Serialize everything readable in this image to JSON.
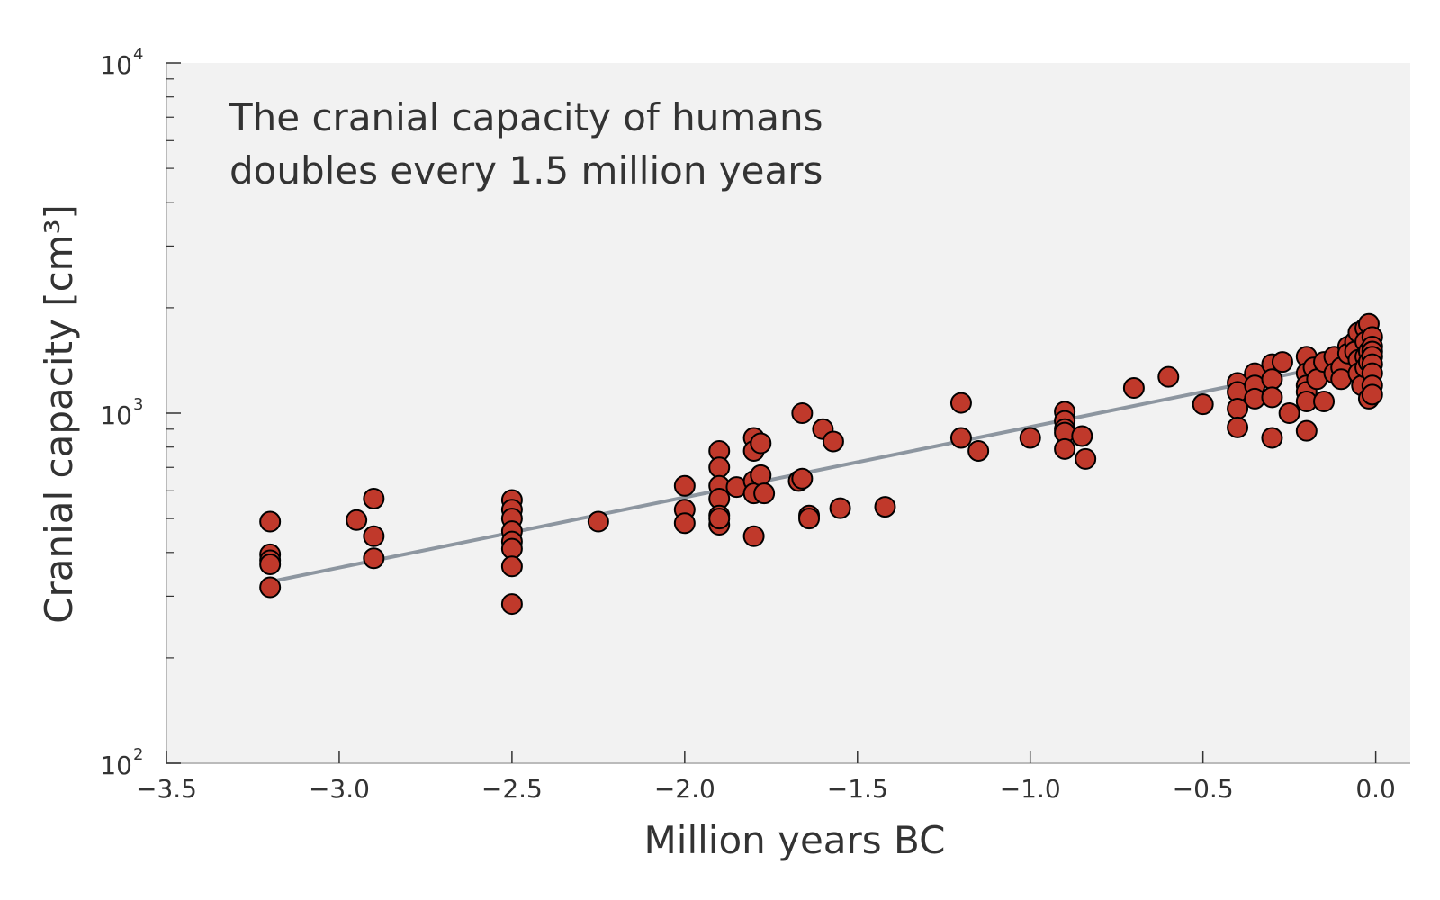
{
  "chart_data": {
    "type": "scatter",
    "annotation_lines": [
      "The cranial capacity of humans",
      "doubles every 1.5 million years"
    ],
    "xlabel": "Million years BC",
    "ylabel": "Cranial capacity [cm³]",
    "xlim": [
      -3.5,
      0.1
    ],
    "ylim": [
      100,
      10000
    ],
    "yscale": "log",
    "grid": false,
    "x_ticks": [
      -3.5,
      -3.0,
      -2.5,
      -2.0,
      -1.5,
      -1.0,
      -0.5,
      0.0
    ],
    "x_tick_labels": [
      "−3.5",
      "−3.0",
      "−2.5",
      "−2.0",
      "−1.5",
      "−1.0",
      "−0.5",
      "0.0"
    ],
    "y_major_ticks": [
      {
        "value": 100,
        "base": "10",
        "exp": "2"
      },
      {
        "value": 1000,
        "base": "10",
        "exp": "3"
      },
      {
        "value": 10000,
        "base": "10",
        "exp": "4"
      }
    ],
    "colors": {
      "plot_background": "#f2f2f2",
      "marker_fill": "#c0392b",
      "marker_edge": "#000000",
      "fit_line": "#8d96a0",
      "axis": "#bbbbbb",
      "text": "#333333"
    },
    "fit": {
      "x": [
        -3.2,
        0.0
      ],
      "y": [
        330,
        1450
      ]
    },
    "points": [
      {
        "x": -3.2,
        "y": 490
      },
      {
        "x": -3.2,
        "y": 395
      },
      {
        "x": -3.2,
        "y": 380
      },
      {
        "x": -3.2,
        "y": 370
      },
      {
        "x": -3.2,
        "y": 318
      },
      {
        "x": -2.95,
        "y": 495
      },
      {
        "x": -2.9,
        "y": 570
      },
      {
        "x": -2.9,
        "y": 445
      },
      {
        "x": -2.9,
        "y": 385
      },
      {
        "x": -2.5,
        "y": 565
      },
      {
        "x": -2.5,
        "y": 530
      },
      {
        "x": -2.5,
        "y": 500
      },
      {
        "x": -2.5,
        "y": 460
      },
      {
        "x": -2.5,
        "y": 430
      },
      {
        "x": -2.5,
        "y": 410
      },
      {
        "x": -2.5,
        "y": 365
      },
      {
        "x": -2.5,
        "y": 285
      },
      {
        "x": -2.25,
        "y": 490
      },
      {
        "x": -2.0,
        "y": 620
      },
      {
        "x": -2.0,
        "y": 530
      },
      {
        "x": -2.0,
        "y": 485
      },
      {
        "x": -1.9,
        "y": 780
      },
      {
        "x": -1.9,
        "y": 700
      },
      {
        "x": -1.9,
        "y": 620
      },
      {
        "x": -1.9,
        "y": 570
      },
      {
        "x": -1.9,
        "y": 510
      },
      {
        "x": -1.9,
        "y": 480
      },
      {
        "x": -1.9,
        "y": 500
      },
      {
        "x": -1.85,
        "y": 615
      },
      {
        "x": -1.8,
        "y": 850
      },
      {
        "x": -1.8,
        "y": 780
      },
      {
        "x": -1.8,
        "y": 640
      },
      {
        "x": -1.8,
        "y": 590
      },
      {
        "x": -1.8,
        "y": 445
      },
      {
        "x": -1.78,
        "y": 820
      },
      {
        "x": -1.78,
        "y": 665
      },
      {
        "x": -1.77,
        "y": 590
      },
      {
        "x": -1.66,
        "y": 1000
      },
      {
        "x": -1.67,
        "y": 640
      },
      {
        "x": -1.66,
        "y": 650
      },
      {
        "x": -1.64,
        "y": 510
      },
      {
        "x": -1.64,
        "y": 500
      },
      {
        "x": -1.6,
        "y": 900
      },
      {
        "x": -1.57,
        "y": 830
      },
      {
        "x": -1.55,
        "y": 535
      },
      {
        "x": -1.42,
        "y": 540
      },
      {
        "x": -1.2,
        "y": 1070
      },
      {
        "x": -1.2,
        "y": 850
      },
      {
        "x": -1.15,
        "y": 780
      },
      {
        "x": -1.0,
        "y": 850
      },
      {
        "x": -0.9,
        "y": 1010
      },
      {
        "x": -0.9,
        "y": 950
      },
      {
        "x": -0.9,
        "y": 900
      },
      {
        "x": -0.9,
        "y": 880
      },
      {
        "x": -0.9,
        "y": 790
      },
      {
        "x": -0.85,
        "y": 860
      },
      {
        "x": -0.84,
        "y": 740
      },
      {
        "x": -0.7,
        "y": 1180
      },
      {
        "x": -0.6,
        "y": 1270
      },
      {
        "x": -0.5,
        "y": 1060
      },
      {
        "x": -0.4,
        "y": 1220
      },
      {
        "x": -0.4,
        "y": 1150
      },
      {
        "x": -0.4,
        "y": 1030
      },
      {
        "x": -0.4,
        "y": 910
      },
      {
        "x": -0.35,
        "y": 1300
      },
      {
        "x": -0.35,
        "y": 1200
      },
      {
        "x": -0.35,
        "y": 1100
      },
      {
        "x": -0.3,
        "y": 1380
      },
      {
        "x": -0.3,
        "y": 1250
      },
      {
        "x": -0.3,
        "y": 1110
      },
      {
        "x": -0.3,
        "y": 850
      },
      {
        "x": -0.27,
        "y": 1400
      },
      {
        "x": -0.25,
        "y": 1000
      },
      {
        "x": -0.2,
        "y": 1450
      },
      {
        "x": -0.2,
        "y": 1300
      },
      {
        "x": -0.2,
        "y": 1200
      },
      {
        "x": -0.2,
        "y": 1150
      },
      {
        "x": -0.2,
        "y": 1080
      },
      {
        "x": -0.2,
        "y": 890
      },
      {
        "x": -0.18,
        "y": 1350
      },
      {
        "x": -0.17,
        "y": 1250
      },
      {
        "x": -0.15,
        "y": 1400
      },
      {
        "x": -0.15,
        "y": 1080
      },
      {
        "x": -0.12,
        "y": 1450
      },
      {
        "x": -0.12,
        "y": 1300
      },
      {
        "x": -0.1,
        "y": 1350
      },
      {
        "x": -0.1,
        "y": 1250
      },
      {
        "x": -0.08,
        "y": 1550
      },
      {
        "x": -0.08,
        "y": 1480
      },
      {
        "x": -0.06,
        "y": 1600
      },
      {
        "x": -0.06,
        "y": 1500
      },
      {
        "x": -0.05,
        "y": 1700
      },
      {
        "x": -0.05,
        "y": 1420
      },
      {
        "x": -0.05,
        "y": 1300
      },
      {
        "x": -0.04,
        "y": 1200
      },
      {
        "x": -0.03,
        "y": 1750
      },
      {
        "x": -0.03,
        "y": 1600
      },
      {
        "x": -0.03,
        "y": 1450
      },
      {
        "x": -0.03,
        "y": 1350
      },
      {
        "x": -0.02,
        "y": 1800
      },
      {
        "x": -0.02,
        "y": 1500
      },
      {
        "x": -0.02,
        "y": 1400
      },
      {
        "x": -0.02,
        "y": 1100
      },
      {
        "x": -0.01,
        "y": 1650
      },
      {
        "x": -0.01,
        "y": 1550
      },
      {
        "x": -0.01,
        "y": 1500
      },
      {
        "x": -0.01,
        "y": 1450
      },
      {
        "x": -0.01,
        "y": 1380
      },
      {
        "x": -0.01,
        "y": 1300
      },
      {
        "x": -0.01,
        "y": 1200
      },
      {
        "x": -0.01,
        "y": 1130
      }
    ]
  }
}
